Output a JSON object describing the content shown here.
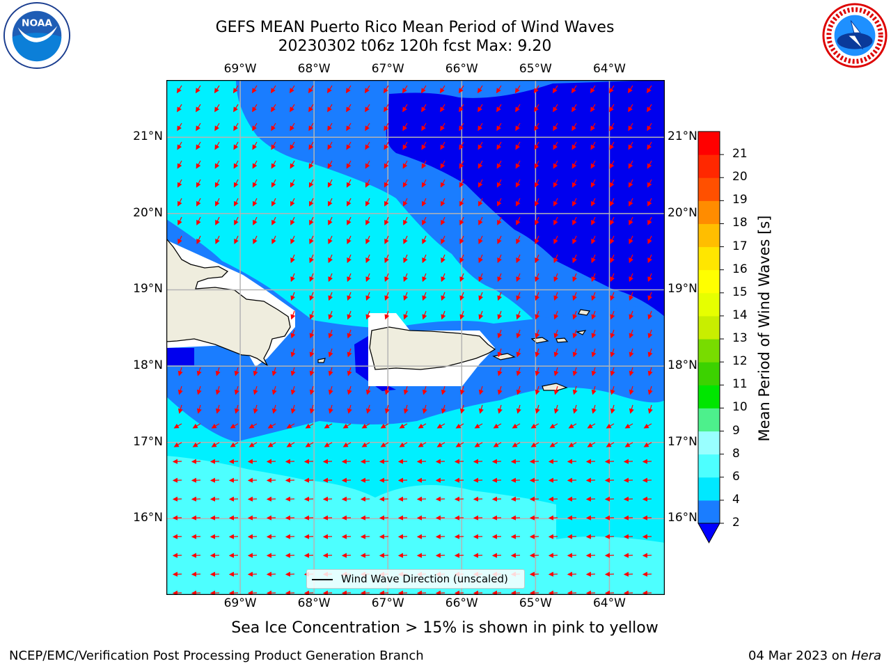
{
  "header": {
    "title_line1": "GEFS MEAN Puerto Rico Mean Period of Wind Waves",
    "title_line2": "20230302 t06z 120h fcst   Max: 9.20"
  },
  "logos": {
    "left": {
      "name": "noaa-logo",
      "text": "NOAA"
    },
    "right": {
      "name": "national-weather-service-logo"
    }
  },
  "map": {
    "lon_ticks": [
      "69°W",
      "68°W",
      "67°W",
      "66°W",
      "65°W",
      "64°W"
    ],
    "lat_ticks": [
      "21°N",
      "20°N",
      "19°N",
      "18°N",
      "17°N",
      "16°N"
    ],
    "lon_range": [
      -70.0,
      -63.25
    ],
    "lat_range": [
      15.0,
      21.75
    ],
    "gridlines": true,
    "land_color": "#efedde",
    "arrow_color": "#ff0000",
    "legend_label": "Wind Wave Direction (unscaled)",
    "legend_placement": "bottom-center"
  },
  "colorbar": {
    "title": "Mean Period of Wind Waves [s]",
    "labels": [
      "2",
      "4",
      "6",
      "8",
      "9",
      "10",
      "11",
      "12",
      "13",
      "14",
      "15",
      "16",
      "17",
      "18",
      "19",
      "20",
      "21"
    ],
    "levels": [
      2,
      4,
      6,
      8,
      9,
      10,
      11,
      12,
      13,
      14,
      15,
      16,
      17,
      18,
      19,
      20,
      21
    ],
    "colors": [
      "#1a7dff",
      "#00e8ff",
      "#4dffff",
      "#99ffff",
      "#4df08c",
      "#00e600",
      "#3cd200",
      "#78dc00",
      "#c8ee00",
      "#e6ff00",
      "#ffff00",
      "#ffe600",
      "#ffbe00",
      "#ff8c00",
      "#ff5000",
      "#ff2800",
      "#ff0000"
    ],
    "extend_color": "#0000ff"
  },
  "footer": {
    "note": "Sea Ice Concentration > 15% is shown in pink to yellow",
    "left": "NCEP/EMC/Verification Post Processing Product Generation Branch",
    "right_date": "04 Mar 2023 on ",
    "right_machine": "Hera"
  }
}
